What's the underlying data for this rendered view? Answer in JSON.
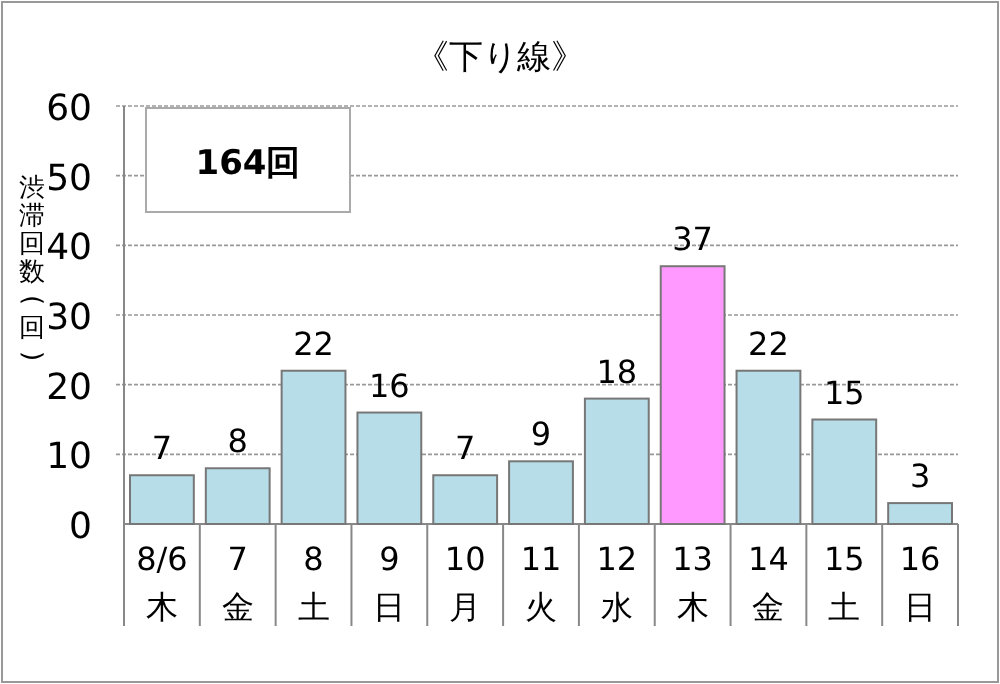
{
  "chart_data": {
    "type": "bar",
    "title": "《下り線》",
    "ylabel": "渋滞回数(回)",
    "categories": [
      "8/6\n木",
      "7\n金",
      "8\n土",
      "9\n日",
      "10\n月",
      "11\n火",
      "12\n水",
      "13\n木",
      "14\n金",
      "15\n土",
      "16\n日"
    ],
    "values": [
      7,
      8,
      22,
      16,
      7,
      9,
      18,
      37,
      22,
      15,
      3
    ],
    "colors": [
      "#b7dde8",
      "#b7dde8",
      "#b7dde8",
      "#b7dde8",
      "#b7dde8",
      "#b7dde8",
      "#b7dde8",
      "#ff99ff",
      "#b7dde8",
      "#b7dde8",
      "#b7dde8"
    ],
    "ylim": [
      0,
      60
    ],
    "yticks": [
      0,
      10,
      20,
      30,
      40,
      50,
      60
    ],
    "grid": "y",
    "data_labels": true,
    "annotations": [
      "164回"
    ]
  }
}
